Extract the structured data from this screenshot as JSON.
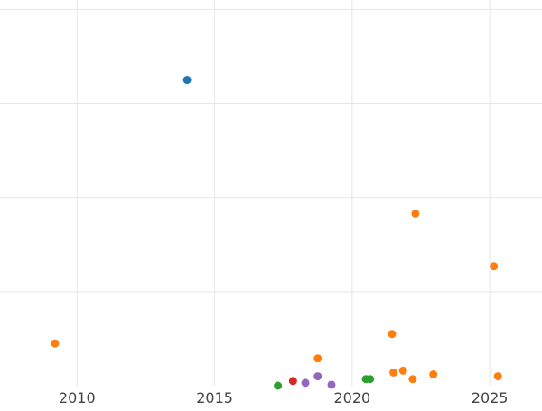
{
  "chart_data": {
    "type": "scatter",
    "title": "",
    "xlabel": "",
    "ylabel": "",
    "grid": true,
    "legend": "none",
    "xlim": [
      2007.2,
      2026.9
    ],
    "ylim": [
      0,
      4.1
    ],
    "x_ticks": [
      2010,
      2015,
      2020,
      2025
    ],
    "x_tick_labels": [
      "2010",
      "2015",
      "2020",
      "2025"
    ],
    "y_gridlines": [
      1,
      2,
      3,
      4
    ],
    "series": [
      {
        "color": "#1f77b4",
        "points": [
          [
            2014.0,
            3.25
          ]
        ]
      },
      {
        "color": "#ff7f0e",
        "points": [
          [
            2009.2,
            0.45
          ],
          [
            2018.75,
            0.29
          ],
          [
            2021.45,
            0.55
          ],
          [
            2021.5,
            0.14
          ],
          [
            2021.85,
            0.16
          ],
          [
            2022.2,
            0.07
          ],
          [
            2022.3,
            1.83
          ],
          [
            2022.95,
            0.12
          ],
          [
            2025.15,
            1.27
          ],
          [
            2025.3,
            0.1
          ]
        ]
      },
      {
        "color": "#2ca02c",
        "points": [
          [
            2017.3,
            0.0
          ],
          [
            2020.5,
            0.07
          ],
          [
            2020.65,
            0.07
          ]
        ]
      },
      {
        "color": "#d62728",
        "points": [
          [
            2017.85,
            0.05
          ]
        ]
      },
      {
        "color": "#9467bd",
        "points": [
          [
            2018.3,
            0.03
          ],
          [
            2018.75,
            0.1
          ],
          [
            2019.25,
            0.01
          ]
        ]
      }
    ]
  }
}
